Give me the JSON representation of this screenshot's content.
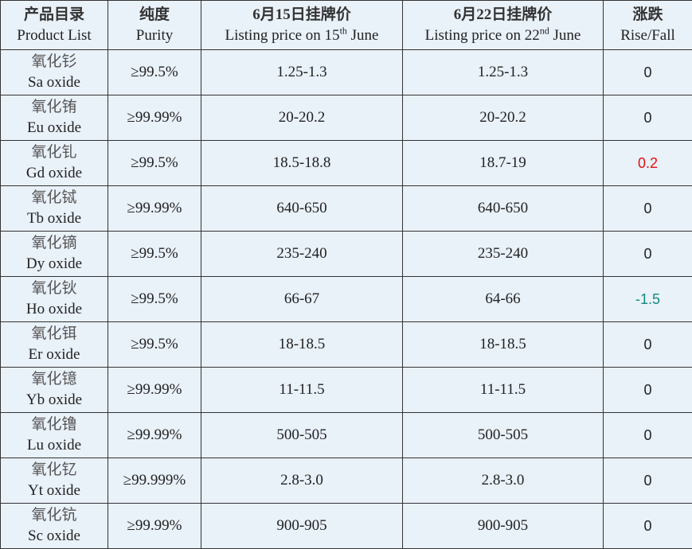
{
  "header": {
    "product": [
      "产品目录",
      "Product List"
    ],
    "purity": [
      "纯度",
      "Purity"
    ],
    "june15": {
      "cn": "6月15日挂牌价",
      "en": "Listing price on 15",
      "sup": "th",
      "tail": " June"
    },
    "june22": {
      "cn": "6月22日挂牌价",
      "en": "Listing price on 22",
      "sup": "nd",
      "tail": " June"
    },
    "change": [
      "涨跌",
      "Rise/Fall"
    ]
  },
  "rows": [
    [
      "氧化钐",
      "Sa oxide",
      "≥99.5%",
      "1.25-1.3",
      "1.25-1.3",
      "0"
    ],
    [
      "氧化铕",
      "Eu oxide",
      "≥99.99%",
      "20-20.2",
      "20-20.2",
      "0"
    ],
    [
      "氧化钆",
      "Gd oxide",
      "≥99.5%",
      "18.5-18.8",
      "18.7-19",
      "0.2"
    ],
    [
      "氧化铽",
      "Tb oxide",
      "≥99.99%",
      "640-650",
      "640-650",
      "0"
    ],
    [
      "氧化镝",
      "Dy oxide",
      "≥99.5%",
      "235-240",
      "235-240",
      "0"
    ],
    [
      "氧化钬",
      "Ho oxide",
      "≥99.5%",
      "66-67",
      "64-66",
      "-1.5"
    ],
    [
      "氧化铒",
      "Er oxide",
      "≥99.5%",
      "18-18.5",
      "18-18.5",
      "0"
    ],
    [
      "氧化镱",
      "Yb oxide",
      "≥99.99%",
      "11-11.5",
      "11-11.5",
      "0"
    ],
    [
      "氧化镥",
      "Lu oxide",
      "≥99.99%",
      "500-505",
      "500-505",
      "0"
    ],
    [
      "氧化钇",
      "Yt oxide",
      "≥99.999%",
      "2.8-3.0",
      "2.8-3.0",
      "0"
    ],
    [
      "氧化钪",
      "Sc oxide",
      "≥99.99%",
      "900-905",
      "900-905",
      "0"
    ]
  ]
}
